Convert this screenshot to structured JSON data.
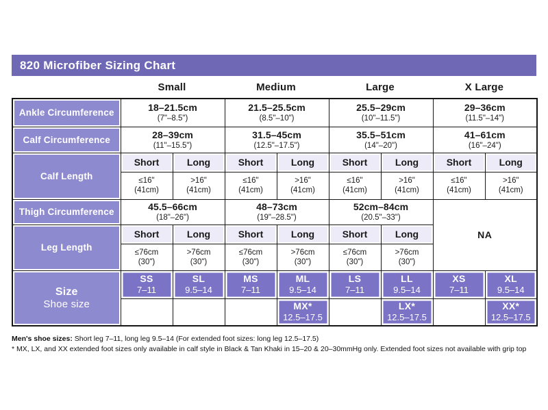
{
  "title": "820 Microfiber Sizing Chart",
  "columns": [
    "Small",
    "Medium",
    "Large",
    "X Large"
  ],
  "sub": {
    "short": "Short",
    "long": "Long"
  },
  "rows": {
    "ankle": {
      "label": "Ankle Circumference",
      "values": [
        {
          "cm": "18–21.5cm",
          "in": "(7\"–8.5\")"
        },
        {
          "cm": "21.5–25.5cm",
          "in": "(8.5\"–10\")"
        },
        {
          "cm": "25.5–29cm",
          "in": "(10\"–11.5\")"
        },
        {
          "cm": "29–36cm",
          "in": "(11.5\"–14\")"
        }
      ]
    },
    "calf_circ": {
      "label": "Calf Circumference",
      "values": [
        {
          "cm": "28–39cm",
          "in": "(11\"–15.5\")"
        },
        {
          "cm": "31.5–45cm",
          "in": "(12.5\"–17.5\")"
        },
        {
          "cm": "35.5–51cm",
          "in": "(14\"–20\")"
        },
        {
          "cm": "41–61cm",
          "in": "(16\"–24\")"
        }
      ]
    },
    "calf_length": {
      "label": "Calf Length",
      "short": {
        "l1": "≤16\"",
        "l2": "(41cm)"
      },
      "long": {
        "l1": ">16\"",
        "l2": "(41cm)"
      }
    },
    "thigh": {
      "label": "Thigh Circumference",
      "values": [
        {
          "cm": "45.5–66cm",
          "in": "(18\"–26\")"
        },
        {
          "cm": "48–73cm",
          "in": "(19\"–28.5\")"
        },
        {
          "cm": "52cm–84cm",
          "in": "(20.5\"–33\")"
        }
      ],
      "na": "NA"
    },
    "leg_length": {
      "label": "Leg Length",
      "short": {
        "l1": "≤76cm",
        "l2": "(30\")"
      },
      "long": {
        "l1": ">76cm",
        "l2": "(30\")"
      }
    },
    "size": {
      "label_line1": "Size",
      "label_line2": "Shoe size",
      "row1": [
        {
          "code": "SS",
          "range": "7–11"
        },
        {
          "code": "SL",
          "range": "9.5–14"
        },
        {
          "code": "MS",
          "range": "7–11"
        },
        {
          "code": "ML",
          "range": "9.5–14"
        },
        {
          "code": "LS",
          "range": "7–11"
        },
        {
          "code": "LL",
          "range": "9.5–14"
        },
        {
          "code": "XS",
          "range": "7–11"
        },
        {
          "code": "XL",
          "range": "9.5–14"
        }
      ],
      "row2": {
        "ml": {
          "code": "MX*",
          "range": "12.5–17.5"
        },
        "ll": {
          "code": "LX*",
          "range": "12.5–17.5"
        },
        "xl": {
          "code": "XX*",
          "range": "12.5–17.5"
        }
      }
    }
  },
  "footnotes": {
    "line1_label": "Men's shoe sizes:",
    "line1_text": " Short leg 7–11, long leg 9.5–14 (For extended foot sizes: long leg 12.5–17.5)",
    "line2": "* MX, LX, and XX extended foot sizes only available in calf style in Black & Tan Khaki in 15–20 & 20–30mmHg only. Extended foot sizes not available with grip top"
  },
  "colors": {
    "title_bar": "#6E68B5",
    "row_label": "#8E8ACF",
    "size_cell": "#7A73C6",
    "subheader": "#ECEBF7"
  }
}
